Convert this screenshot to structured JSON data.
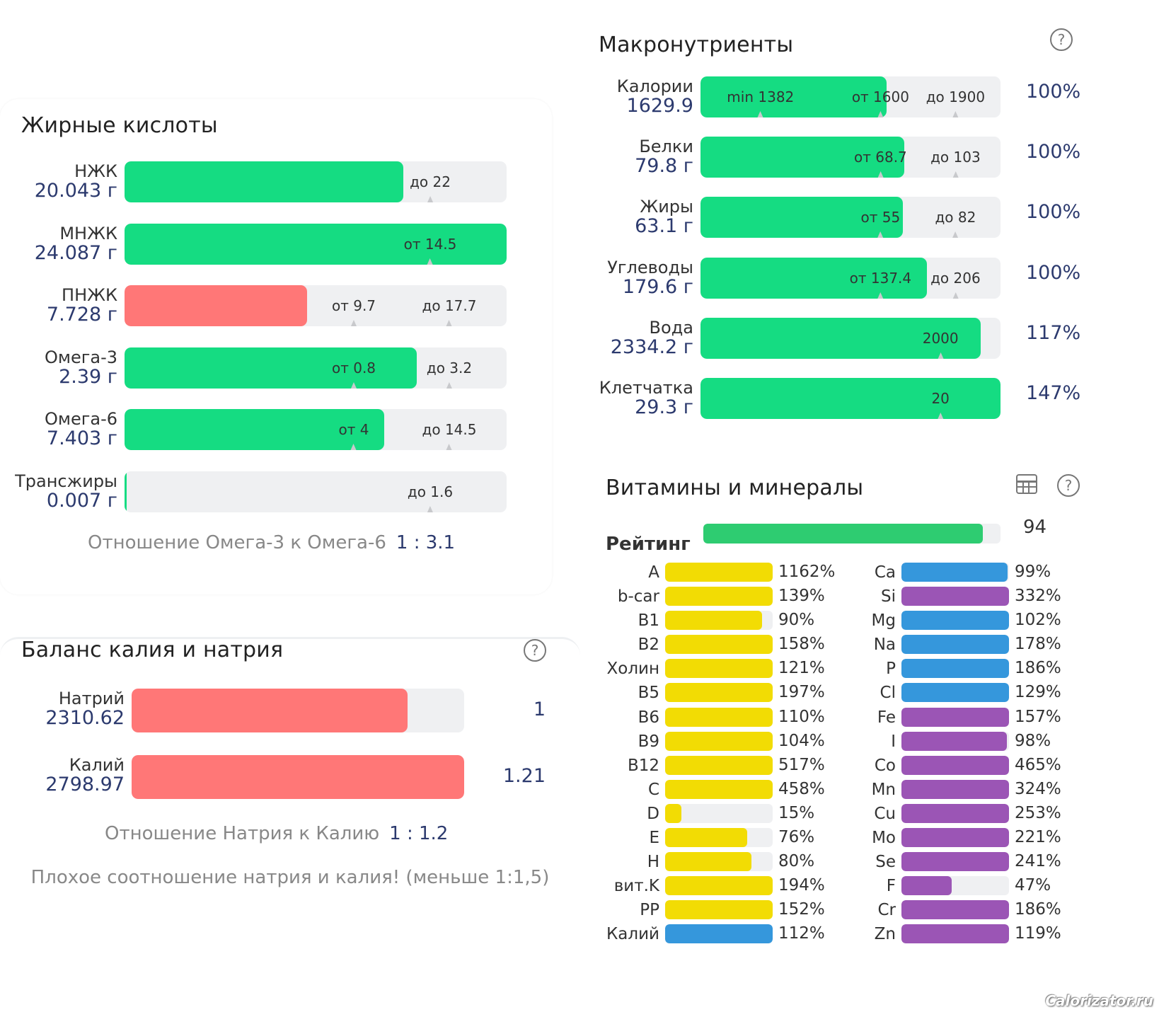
{
  "colors": {
    "green": "#15dc82",
    "red": "#ff7777",
    "yellow": "#f2dc04",
    "blue": "#3597dc",
    "purple": "#9b55b5",
    "rating_green": "#2ecc71",
    "track": "#eff0f2",
    "value_text": "#2c3a6e"
  },
  "fatty_acids": {
    "title": "Жирные кислоты",
    "ratio_label": "Отношение Омега-3 к Омега-6",
    "ratio_value": "1 : 3.1"
  },
  "balance": {
    "title": "Баланс калия и натрия",
    "ratio_label": "Отношение Натрия к Калию",
    "ratio_value": "1 : 1.2",
    "warning": "Плохое соотношение натрия и калия! (меньше 1:1,5)"
  },
  "macros": {
    "title": "Макронутриенты"
  },
  "vitamins": {
    "title": "Витамины и минералы",
    "rating_label": "Рейтинг",
    "rating_value": "94"
  },
  "watermark": "Calorizator.ru",
  "chart_data": [
    {
      "type": "bar",
      "title": "Жирные кислоты",
      "orientation": "horizontal",
      "rows": [
        {
          "name": "НЖК",
          "value_text": "20.043 г",
          "fill": 0.73,
          "color": "green",
          "markers": [
            {
              "text": "до 22",
              "pos": 0.8
            }
          ]
        },
        {
          "name": "МНЖК",
          "value_text": "24.087 г",
          "fill": 1.0,
          "color": "green",
          "markers": [
            {
              "text": "от 14.5",
              "pos": 0.8
            }
          ]
        },
        {
          "name": "ПНЖК",
          "value_text": "7.728 г",
          "fill": 0.477,
          "color": "red",
          "markers": [
            {
              "text": "от 9.7",
              "pos": 0.6
            },
            {
              "text": "до 17.7",
              "pos": 0.85
            }
          ]
        },
        {
          "name": "Омега-3",
          "value_text": "2.39 г",
          "fill": 0.765,
          "color": "green",
          "markers": [
            {
              "text": "от 0.8",
              "pos": 0.6
            },
            {
              "text": "до 3.2",
              "pos": 0.85
            }
          ]
        },
        {
          "name": "Омега-6",
          "value_text": "7.403 г",
          "fill": 0.68,
          "color": "green",
          "markers": [
            {
              "text": "от 4",
              "pos": 0.6
            },
            {
              "text": "до 14.5",
              "pos": 0.85
            }
          ]
        },
        {
          "name": "Трансжиры",
          "value_text": "0.007 г",
          "fill": 0.004,
          "color": "green",
          "markers": [
            {
              "text": "до 1.6",
              "pos": 0.8
            }
          ]
        }
      ]
    },
    {
      "type": "bar",
      "title": "Баланс калия и натрия",
      "orientation": "horizontal",
      "rows": [
        {
          "name": "Натрий",
          "value_text": "2310.62",
          "fill": 0.83,
          "color": "red",
          "ratio": "1"
        },
        {
          "name": "Калий",
          "value_text": "2798.97",
          "fill": 1.0,
          "color": "red",
          "ratio": "1.21"
        }
      ]
    },
    {
      "type": "bar",
      "title": "Макронутриенты",
      "orientation": "horizontal",
      "rows": [
        {
          "name": "Калории",
          "value_text": "1629.9",
          "fill": 0.62,
          "color": "green",
          "percent": "100%",
          "markers": [
            {
              "text": "min 1382",
              "pos": 0.2
            },
            {
              "text": "от 1600",
              "pos": 0.6
            },
            {
              "text": "до 1900",
              "pos": 0.85
            }
          ]
        },
        {
          "name": "Белки",
          "value_text": "79.8 г",
          "fill": 0.68,
          "color": "green",
          "percent": "100%",
          "markers": [
            {
              "text": "от 68.7",
              "pos": 0.6
            },
            {
              "text": "до 103",
              "pos": 0.85
            }
          ]
        },
        {
          "name": "Жиры",
          "value_text": "63.1 г",
          "fill": 0.675,
          "color": "green",
          "percent": "100%",
          "markers": [
            {
              "text": "от 55",
              "pos": 0.6
            },
            {
              "text": "до 82",
              "pos": 0.85
            }
          ]
        },
        {
          "name": "Углеводы",
          "value_text": "179.6 г",
          "fill": 0.755,
          "color": "green",
          "percent": "100%",
          "markers": [
            {
              "text": "от 137.4",
              "pos": 0.6
            },
            {
              "text": "до 206",
              "pos": 0.85
            }
          ]
        },
        {
          "name": "Вода",
          "value_text": "2334.2 г",
          "fill": 0.935,
          "color": "green",
          "percent": "117%",
          "markers": [
            {
              "text": "2000",
              "pos": 0.8
            }
          ]
        },
        {
          "name": "Клетчатка",
          "value_text": "29.3 г",
          "fill": 1.0,
          "color": "green",
          "percent": "147%",
          "markers": [
            {
              "text": "20",
              "pos": 0.8
            }
          ]
        }
      ]
    },
    {
      "type": "bar",
      "title": "Витамины и минералы",
      "orientation": "horizontal",
      "rating": 94,
      "vitamins": [
        {
          "name": "A",
          "percent": 1162,
          "label": "1162%",
          "color": "yellow"
        },
        {
          "name": "b-car",
          "percent": 139,
          "label": "139%",
          "color": "yellow"
        },
        {
          "name": "B1",
          "percent": 90,
          "label": "90%",
          "color": "yellow"
        },
        {
          "name": "B2",
          "percent": 158,
          "label": "158%",
          "color": "yellow"
        },
        {
          "name": "Холин",
          "percent": 121,
          "label": "121%",
          "color": "yellow"
        },
        {
          "name": "B5",
          "percent": 197,
          "label": "197%",
          "color": "yellow"
        },
        {
          "name": "B6",
          "percent": 110,
          "label": "110%",
          "color": "yellow"
        },
        {
          "name": "B9",
          "percent": 104,
          "label": "104%",
          "color": "yellow"
        },
        {
          "name": "B12",
          "percent": 517,
          "label": "517%",
          "color": "yellow"
        },
        {
          "name": "C",
          "percent": 458,
          "label": "458%",
          "color": "yellow"
        },
        {
          "name": "D",
          "percent": 15,
          "label": "15%",
          "color": "yellow"
        },
        {
          "name": "E",
          "percent": 76,
          "label": "76%",
          "color": "yellow"
        },
        {
          "name": "H",
          "percent": 80,
          "label": "80%",
          "color": "yellow"
        },
        {
          "name": "вит.K",
          "percent": 194,
          "label": "194%",
          "color": "yellow"
        },
        {
          "name": "PP",
          "percent": 152,
          "label": "152%",
          "color": "yellow"
        },
        {
          "name": "Калий",
          "percent": 112,
          "label": "112%",
          "color": "blue"
        }
      ],
      "minerals": [
        {
          "name": "Ca",
          "percent": 99,
          "label": "99%",
          "color": "blue"
        },
        {
          "name": "Si",
          "percent": 332,
          "label": "332%",
          "color": "purple"
        },
        {
          "name": "Mg",
          "percent": 102,
          "label": "102%",
          "color": "blue"
        },
        {
          "name": "Na",
          "percent": 178,
          "label": "178%",
          "color": "blue"
        },
        {
          "name": "P",
          "percent": 186,
          "label": "186%",
          "color": "blue"
        },
        {
          "name": "Cl",
          "percent": 129,
          "label": "129%",
          "color": "blue"
        },
        {
          "name": "Fe",
          "percent": 157,
          "label": "157%",
          "color": "purple"
        },
        {
          "name": "I",
          "percent": 98,
          "label": "98%",
          "color": "purple"
        },
        {
          "name": "Co",
          "percent": 465,
          "label": "465%",
          "color": "purple"
        },
        {
          "name": "Mn",
          "percent": 324,
          "label": "324%",
          "color": "purple"
        },
        {
          "name": "Cu",
          "percent": 253,
          "label": "253%",
          "color": "purple"
        },
        {
          "name": "Mo",
          "percent": 221,
          "label": "221%",
          "color": "purple"
        },
        {
          "name": "Se",
          "percent": 241,
          "label": "241%",
          "color": "purple"
        },
        {
          "name": "F",
          "percent": 47,
          "label": "47%",
          "color": "purple"
        },
        {
          "name": "Cr",
          "percent": 186,
          "label": "186%",
          "color": "purple"
        },
        {
          "name": "Zn",
          "percent": 119,
          "label": "119%",
          "color": "purple"
        }
      ]
    }
  ]
}
